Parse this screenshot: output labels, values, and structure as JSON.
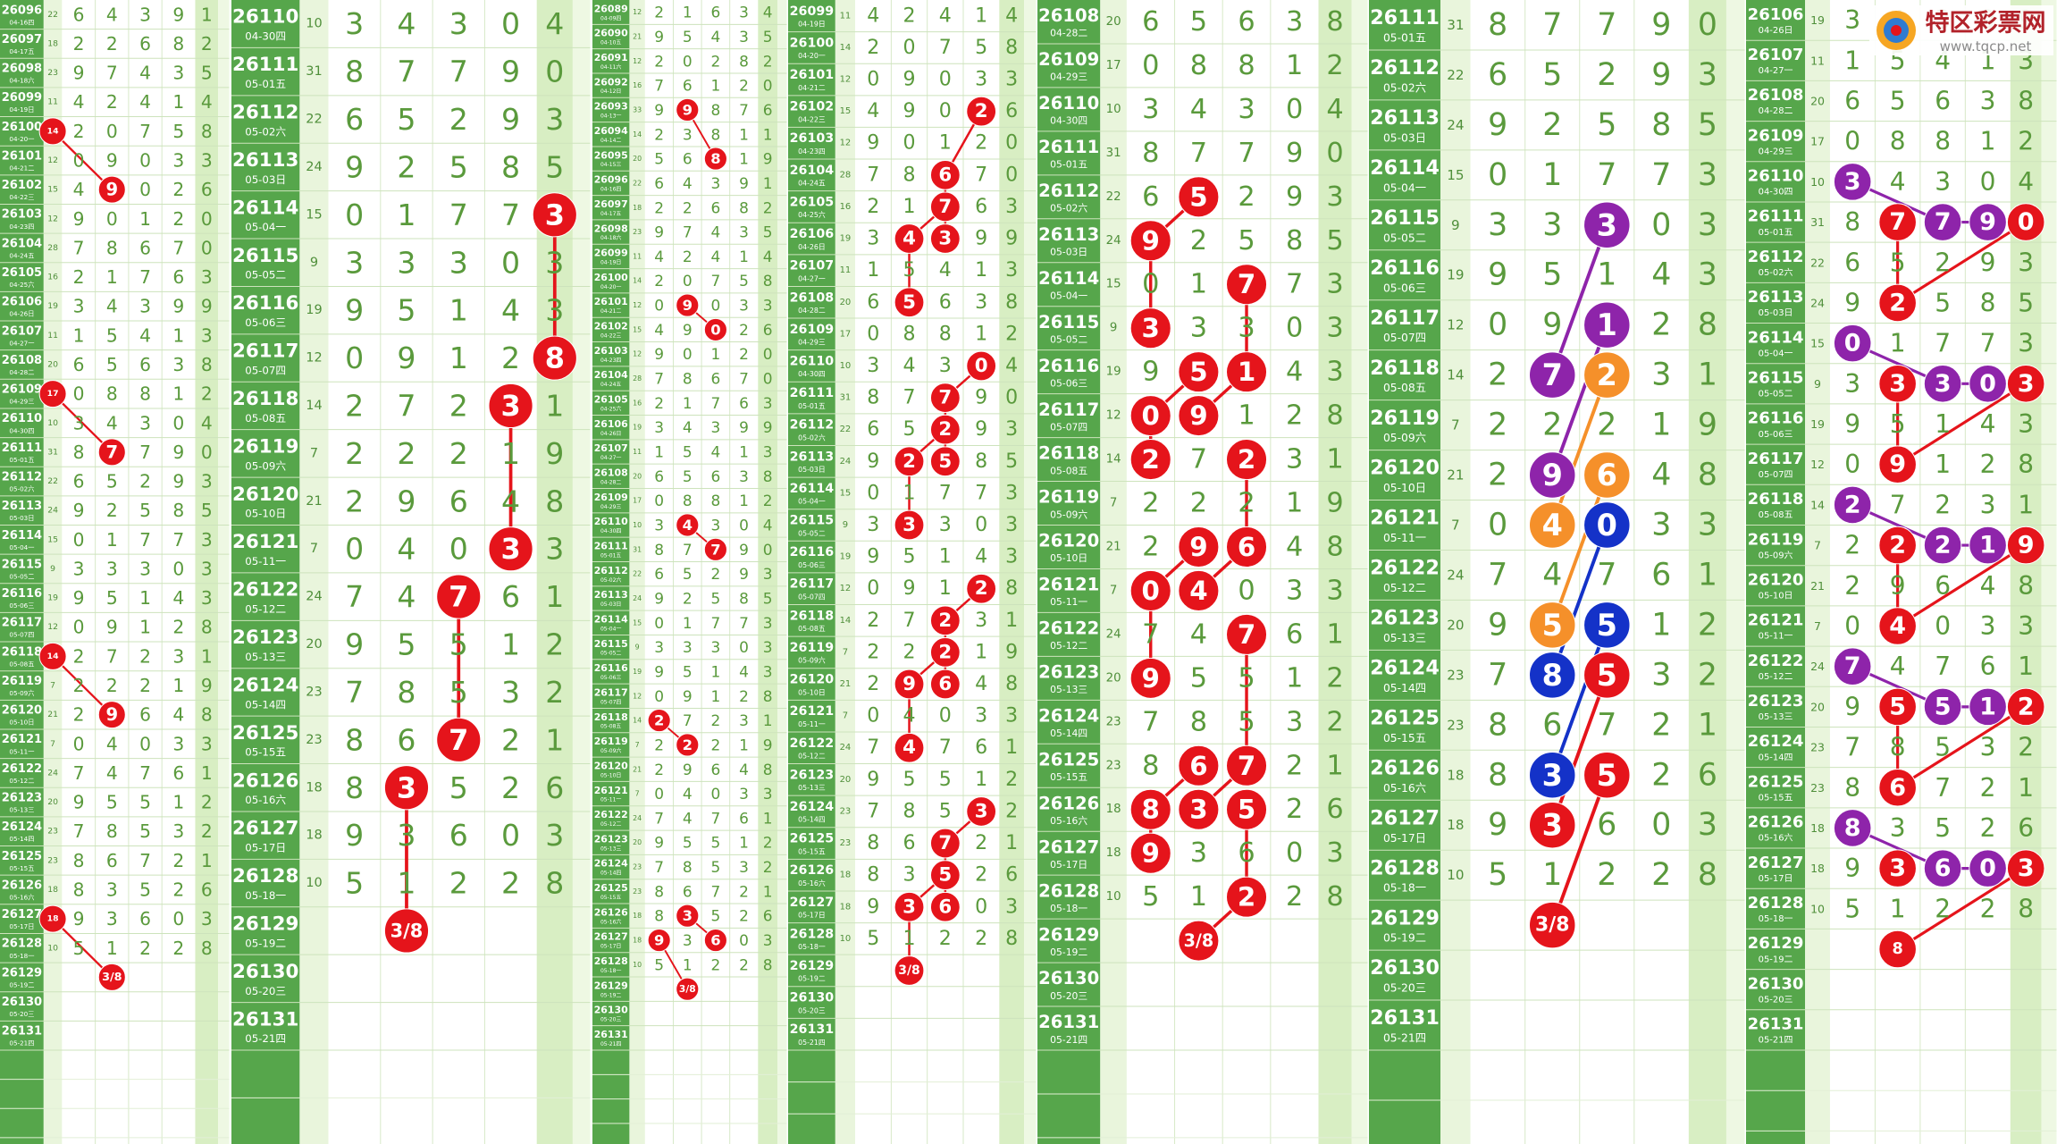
{
  "logo": {
    "name": "特区彩票网",
    "url": "www.tqcp.net"
  },
  "draws": [
    {
      "issue": 26089,
      "date": "04-09四",
      "sum": 12,
      "nums": [
        2,
        1,
        6,
        3,
        4
      ]
    },
    {
      "issue": 26090,
      "date": "04-10五",
      "sum": 21,
      "nums": [
        9,
        5,
        4,
        3,
        5
      ]
    },
    {
      "issue": 26091,
      "date": "04-11六",
      "sum": 12,
      "nums": [
        2,
        0,
        2,
        8,
        2
      ]
    },
    {
      "issue": 26092,
      "date": "04-12日",
      "sum": 16,
      "nums": [
        7,
        6,
        1,
        2,
        0
      ]
    },
    {
      "issue": 26093,
      "date": "04-13一",
      "sum": 33,
      "nums": [
        9,
        9,
        8,
        7,
        6
      ]
    },
    {
      "issue": 26094,
      "date": "04-14二",
      "sum": 14,
      "nums": [
        2,
        3,
        8,
        1,
        1
      ]
    },
    {
      "issue": 26095,
      "date": "04-15三",
      "sum": 20,
      "nums": [
        5,
        6,
        8,
        1,
        9
      ]
    },
    {
      "issue": 26096,
      "date": "04-16四",
      "sum": 22,
      "nums": [
        6,
        4,
        3,
        9,
        1
      ]
    },
    {
      "issue": 26097,
      "date": "04-17五",
      "sum": 18,
      "nums": [
        2,
        2,
        6,
        8,
        2
      ]
    },
    {
      "issue": 26098,
      "date": "04-18六",
      "sum": 23,
      "nums": [
        9,
        7,
        4,
        3,
        5
      ]
    },
    {
      "issue": 26099,
      "date": "04-19日",
      "sum": 11,
      "nums": [
        4,
        2,
        4,
        1,
        4
      ]
    },
    {
      "issue": 26100,
      "date": "04-20一",
      "sum": 14,
      "nums": [
        2,
        0,
        7,
        5,
        8
      ]
    },
    {
      "issue": 26101,
      "date": "04-21二",
      "sum": 12,
      "nums": [
        0,
        9,
        0,
        3,
        3
      ]
    },
    {
      "issue": 26102,
      "date": "04-22三",
      "sum": 15,
      "nums": [
        4,
        9,
        0,
        2,
        6
      ]
    },
    {
      "issue": 26103,
      "date": "04-23四",
      "sum": 12,
      "nums": [
        9,
        0,
        1,
        2,
        0
      ]
    },
    {
      "issue": 26104,
      "date": "04-24五",
      "sum": 28,
      "nums": [
        7,
        8,
        6,
        7,
        0
      ]
    },
    {
      "issue": 26105,
      "date": "04-25六",
      "sum": 16,
      "nums": [
        2,
        1,
        7,
        6,
        3
      ]
    },
    {
      "issue": 26106,
      "date": "04-26日",
      "sum": 19,
      "nums": [
        3,
        4,
        3,
        9,
        9
      ]
    },
    {
      "issue": 26107,
      "date": "04-27一",
      "sum": 11,
      "nums": [
        1,
        5,
        4,
        1,
        3
      ]
    },
    {
      "issue": 26108,
      "date": "04-28二",
      "sum": 20,
      "nums": [
        6,
        5,
        6,
        3,
        8
      ]
    },
    {
      "issue": 26109,
      "date": "04-29三",
      "sum": 17,
      "nums": [
        0,
        8,
        8,
        1,
        2
      ]
    },
    {
      "issue": 26110,
      "date": "04-30四",
      "sum": 10,
      "nums": [
        3,
        4,
        3,
        0,
        4
      ]
    },
    {
      "issue": 26111,
      "date": "05-01五",
      "sum": 31,
      "nums": [
        8,
        7,
        7,
        9,
        0
      ]
    },
    {
      "issue": 26112,
      "date": "05-02六",
      "sum": 22,
      "nums": [
        6,
        5,
        2,
        9,
        3
      ]
    },
    {
      "issue": 26113,
      "date": "05-03日",
      "sum": 24,
      "nums": [
        9,
        2,
        5,
        8,
        5
      ]
    },
    {
      "issue": 26114,
      "date": "05-04一",
      "sum": 15,
      "nums": [
        0,
        1,
        7,
        7,
        3
      ]
    },
    {
      "issue": 26115,
      "date": "05-05二",
      "sum": 9,
      "nums": [
        3,
        3,
        3,
        0,
        3
      ]
    },
    {
      "issue": 26116,
      "date": "05-06三",
      "sum": 19,
      "nums": [
        9,
        5,
        1,
        4,
        3
      ]
    },
    {
      "issue": 26117,
      "date": "05-07四",
      "sum": 12,
      "nums": [
        0,
        9,
        1,
        2,
        8
      ]
    },
    {
      "issue": 26118,
      "date": "05-08五",
      "sum": 14,
      "nums": [
        2,
        7,
        2,
        3,
        1
      ]
    },
    {
      "issue": 26119,
      "date": "05-09六",
      "sum": 7,
      "nums": [
        2,
        2,
        2,
        1,
        9
      ]
    },
    {
      "issue": 26120,
      "date": "05-10日",
      "sum": 21,
      "nums": [
        2,
        9,
        6,
        4,
        8
      ]
    },
    {
      "issue": 26121,
      "date": "05-11一",
      "sum": 7,
      "nums": [
        0,
        4,
        0,
        3,
        3
      ]
    },
    {
      "issue": 26122,
      "date": "05-12二",
      "sum": 24,
      "nums": [
        7,
        4,
        7,
        6,
        1
      ]
    },
    {
      "issue": 26123,
      "date": "05-13三",
      "sum": 20,
      "nums": [
        9,
        5,
        5,
        1,
        2
      ]
    },
    {
      "issue": 26124,
      "date": "05-14四",
      "sum": 23,
      "nums": [
        7,
        8,
        5,
        3,
        2
      ]
    },
    {
      "issue": 26125,
      "date": "05-15五",
      "sum": 23,
      "nums": [
        8,
        6,
        7,
        2,
        1
      ]
    },
    {
      "issue": 26126,
      "date": "05-16六",
      "sum": 18,
      "nums": [
        8,
        3,
        5,
        2,
        6
      ]
    },
    {
      "issue": 26127,
      "date": "05-17日",
      "sum": 18,
      "nums": [
        9,
        3,
        6,
        0,
        3
      ]
    },
    {
      "issue": 26128,
      "date": "05-18一",
      "sum": 10,
      "nums": [
        5,
        1,
        2,
        2,
        8
      ]
    },
    {
      "issue": 26129,
      "date": "05-19二"
    },
    {
      "issue": 26130,
      "date": "05-20三"
    },
    {
      "issue": 26131,
      "date": "05-21四"
    }
  ],
  "panels": [
    {
      "start_issue": 26096,
      "chains": [
        {
          "color": "#e5141b",
          "cells": [
            [
              26100,
              0
            ],
            [
              26102,
              2
            ]
          ]
        },
        {
          "color": "#e5141b",
          "cells": [
            [
              26109,
              0
            ],
            [
              26111,
              2
            ]
          ]
        },
        {
          "color": "#e5141b",
          "cells": [
            [
              26118,
              0
            ],
            [
              26120,
              2
            ]
          ]
        },
        {
          "color": "#e5141b",
          "cells": [
            [
              26127,
              0
            ]
          ],
          "tail": [
            26129,
            2,
            "3/8"
          ]
        }
      ]
    },
    {
      "start_issue": 26110,
      "chains": [
        {
          "color": "#e5141b",
          "cells": [
            [
              26114,
              5
            ],
            [
              26117,
              5
            ]
          ]
        },
        {
          "color": "#e5141b",
          "cells": [
            [
              26118,
              4
            ],
            [
              26121,
              4
            ]
          ]
        },
        {
          "color": "#e5141b",
          "cells": [
            [
              26122,
              3
            ],
            [
              26125,
              3
            ]
          ]
        },
        {
          "color": "#e5141b",
          "cells": [
            [
              26126,
              2
            ]
          ],
          "tail": [
            26129,
            2,
            "3/8"
          ]
        }
      ]
    },
    {
      "start_issue": 26089,
      "chains": [
        {
          "color": "#e5141b",
          "cells": [
            [
              26093,
              2
            ],
            [
              26095,
              3
            ]
          ]
        },
        {
          "color": "#e5141b",
          "cells": [
            [
              26101,
              2
            ],
            [
              26102,
              3
            ]
          ]
        },
        {
          "color": "#e5141b",
          "cells": [
            [
              26110,
              2
            ],
            [
              26111,
              3
            ]
          ]
        },
        {
          "color": "#e5141b",
          "cells": [
            [
              26118,
              1
            ],
            [
              26119,
              2
            ]
          ]
        },
        {
          "color": "#e5141b",
          "cells": [
            [
              26126,
              2
            ],
            [
              26127,
              3
            ]
          ]
        },
        {
          "color": "#e5141b",
          "cells": [
            [
              26127,
              1
            ]
          ],
          "tail": [
            26129,
            2,
            "3/8"
          ]
        }
      ]
    },
    {
      "start_issue": 26099,
      "chains": [
        {
          "color": "#e5141b",
          "cells": [
            [
              26102,
              4
            ],
            [
              26104,
              3
            ],
            [
              26105,
              3
            ],
            [
              26106,
              2
            ],
            [
              26108,
              2
            ]
          ]
        },
        {
          "color": "#e5141b",
          "cells": [
            [
              26105,
              3
            ],
            [
              26106,
              3
            ]
          ]
        },
        {
          "color": "#e5141b",
          "cells": [
            [
              26110,
              4
            ],
            [
              26111,
              3
            ],
            [
              26112,
              3
            ],
            [
              26113,
              2
            ],
            [
              26115,
              2
            ]
          ]
        },
        {
          "color": "#e5141b",
          "cells": [
            [
              26112,
              3
            ],
            [
              26113,
              3
            ]
          ]
        },
        {
          "color": "#e5141b",
          "cells": [
            [
              26117,
              4
            ],
            [
              26118,
              3
            ],
            [
              26119,
              3
            ],
            [
              26120,
              2
            ],
            [
              26122,
              2
            ]
          ]
        },
        {
          "color": "#e5141b",
          "cells": [
            [
              26119,
              3
            ],
            [
              26120,
              3
            ]
          ]
        },
        {
          "color": "#e5141b",
          "cells": [
            [
              26126,
              3
            ],
            [
              26127,
              3
            ]
          ]
        },
        {
          "color": "#e5141b",
          "cells": [
            [
              26124,
              4
            ],
            [
              26125,
              3
            ],
            [
              26126,
              3
            ],
            [
              26127,
              2
            ]
          ],
          "tail": [
            26129,
            2,
            "3/8"
          ]
        }
      ]
    },
    {
      "start_issue": 26108,
      "chains": [
        {
          "color": "#e5141b",
          "cells": [
            [
              26112,
              2
            ],
            [
              26113,
              1
            ],
            [
              26115,
              1
            ]
          ]
        },
        {
          "color": "#e5141b",
          "cells": [
            [
              26114,
              3
            ],
            [
              26116,
              3
            ],
            [
              26117,
              2
            ]
          ]
        },
        {
          "color": "#e5141b",
          "cells": [
            [
              26116,
              2
            ],
            [
              26117,
              1
            ],
            [
              26118,
              1
            ]
          ]
        },
        {
          "color": "#e5141b",
          "cells": [
            [
              26118,
              3
            ],
            [
              26120,
              3
            ],
            [
              26121,
              2
            ]
          ]
        },
        {
          "color": "#e5141b",
          "cells": [
            [
              26120,
              2
            ],
            [
              26121,
              1
            ],
            [
              26123,
              1
            ]
          ]
        },
        {
          "color": "#e5141b",
          "cells": [
            [
              26122,
              3
            ],
            [
              26125,
              3
            ],
            [
              26126,
              2
            ]
          ]
        },
        {
          "color": "#e5141b",
          "cells": [
            [
              26125,
              2
            ],
            [
              26126,
              1
            ],
            [
              26127,
              1
            ]
          ]
        },
        {
          "color": "#e5141b",
          "cells": [
            [
              26126,
              3
            ],
            [
              26128,
              3
            ]
          ],
          "tail": [
            26129,
            2,
            "3/8"
          ]
        }
      ]
    },
    {
      "start_issue": 26111,
      "chains": [
        {
          "color": "#8e24aa",
          "cells": [
            [
              26115,
              3
            ],
            [
              26118,
              2
            ]
          ]
        },
        {
          "color": "#8e24aa",
          "cells": [
            [
              26117,
              3
            ],
            [
              26120,
              2
            ]
          ]
        },
        {
          "color": "#f5902a",
          "cells": [
            [
              26118,
              3
            ],
            [
              26121,
              2
            ]
          ]
        },
        {
          "color": "#f5902a",
          "cells": [
            [
              26120,
              3
            ],
            [
              26123,
              2
            ]
          ]
        },
        {
          "color": "#1432c8",
          "cells": [
            [
              26121,
              3
            ],
            [
              26124,
              2
            ]
          ]
        },
        {
          "color": "#1432c8",
          "cells": [
            [
              26123,
              3
            ],
            [
              26126,
              2
            ]
          ]
        },
        {
          "color": "#e5141b",
          "cells": [
            [
              26124,
              3
            ],
            [
              26127,
              2
            ]
          ]
        },
        {
          "color": "#e5141b",
          "cells": [
            [
              26126,
              3
            ]
          ],
          "tail": [
            26129,
            2,
            "3/8"
          ]
        }
      ]
    },
    {
      "start_issue": 26106,
      "chains": [
        {
          "color": "#8e24aa",
          "cells": [
            [
              26110,
              1
            ],
            [
              26111,
              3
            ],
            [
              26111,
              4
            ]
          ]
        },
        {
          "color": "#e5141b",
          "cells": [
            [
              26111,
              2
            ],
            [
              26113,
              2
            ],
            [
              26111,
              5
            ]
          ]
        },
        {
          "color": "#8e24aa",
          "cells": [
            [
              26114,
              1
            ],
            [
              26115,
              3
            ],
            [
              26115,
              4
            ]
          ]
        },
        {
          "color": "#e5141b",
          "cells": [
            [
              26115,
              2
            ],
            [
              26117,
              2
            ],
            [
              26115,
              5
            ]
          ]
        },
        {
          "color": "#8e24aa",
          "cells": [
            [
              26118,
              1
            ],
            [
              26119,
              3
            ],
            [
              26119,
              4
            ]
          ]
        },
        {
          "color": "#e5141b",
          "cells": [
            [
              26119,
              2
            ],
            [
              26121,
              2
            ],
            [
              26119,
              5
            ]
          ]
        },
        {
          "color": "#8e24aa",
          "cells": [
            [
              26122,
              1
            ],
            [
              26123,
              3
            ],
            [
              26123,
              4
            ]
          ]
        },
        {
          "color": "#e5141b",
          "cells": [
            [
              26123,
              2
            ],
            [
              26125,
              2
            ],
            [
              26123,
              5
            ]
          ]
        },
        {
          "color": "#8e24aa",
          "cells": [
            [
              26126,
              1
            ],
            [
              26127,
              3
            ],
            [
              26127,
              4
            ]
          ]
        },
        {
          "color": "#e5141b",
          "cells": [
            [
              26127,
              2
            ]
          ]
        },
        {
          "color": "#e5141b",
          "cells": [
            [
              26127,
              5
            ]
          ],
          "tail": [
            26129,
            2,
            "8"
          ]
        }
      ]
    }
  ]
}
